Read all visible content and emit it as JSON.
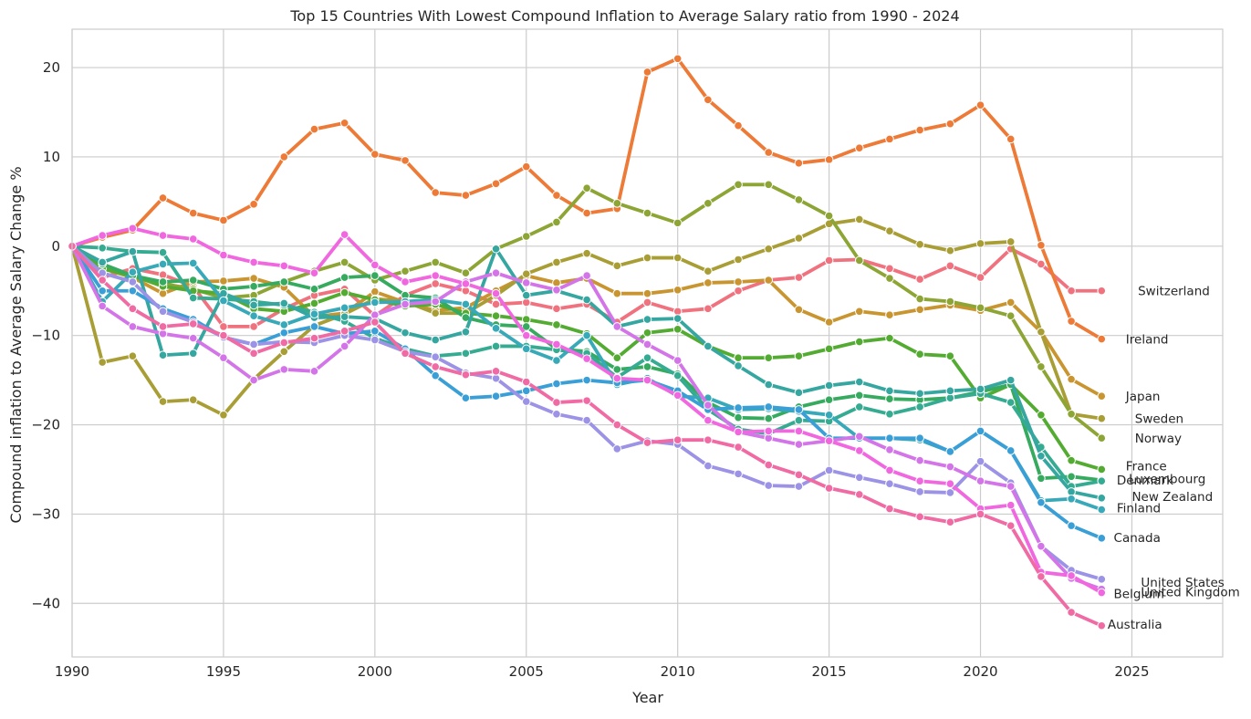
{
  "chart_data": {
    "type": "line",
    "title": "Top 15 Countries With Lowest Compound Inflation to Average Salary ratio from 1990 - 2024",
    "xlabel": "Year",
    "ylabel": "Compound inflation to Average Salary Change %",
    "xlim": [
      1990,
      2028
    ],
    "ylim": [
      -46,
      24.3
    ],
    "xticks": [
      1990,
      1995,
      2000,
      2005,
      2010,
      2015,
      2020,
      2025
    ],
    "yticks": [
      -40,
      -30,
      -20,
      -10,
      0,
      10,
      20
    ],
    "ytick_labels": [
      "−40",
      "−30",
      "−20",
      "−10",
      "0",
      "10",
      "20"
    ],
    "grid": true,
    "markers": true,
    "x": [
      1990,
      1991,
      1992,
      1993,
      1994,
      1995,
      1996,
      1997,
      1998,
      1999,
      2000,
      2001,
      2002,
      2003,
      2004,
      2005,
      2006,
      2007,
      2008,
      2009,
      2010,
      2011,
      2012,
      2013,
      2014,
      2015,
      2016,
      2017,
      2018,
      2019,
      2020,
      2021,
      2022,
      2023,
      2024
    ],
    "series": [
      {
        "name": "Switzerland",
        "color": "#f0727f",
        "values": [
          0,
          -3.5,
          -2.5,
          -3.2,
          -4.5,
          -9.0,
          -9.0,
          -7.0,
          -5.5,
          -4.8,
          -7.8,
          -5.5,
          -4.2,
          -5.0,
          -6.5,
          -6.3,
          -7.0,
          -6.5,
          -8.5,
          -6.3,
          -7.3,
          -7.0,
          -5.0,
          -3.8,
          -3.5,
          -1.6,
          -1.5,
          -2.5,
          -3.7,
          -2.2,
          -3.5,
          -0.3,
          -2.0,
          -5.0,
          -5.0
        ]
      },
      {
        "name": "Ireland",
        "color": "#ed7a36",
        "values": [
          0,
          1.0,
          1.8,
          5.4,
          3.7,
          2.9,
          4.7,
          10.0,
          13.1,
          13.8,
          10.3,
          9.6,
          6.0,
          5.7,
          7.0,
          8.9,
          5.7,
          3.7,
          4.2,
          19.5,
          21.0,
          16.4,
          13.5,
          10.5,
          9.3,
          9.7,
          11.0,
          12.0,
          13.0,
          13.7,
          15.8,
          12.0,
          0.1,
          -8.4,
          -10.4
        ]
      },
      {
        "name": "Japan",
        "color": "#c99530",
        "values": [
          0,
          -2.0,
          -3.5,
          -5.3,
          -4.0,
          -3.9,
          -3.6,
          -4.6,
          -7.9,
          -7.5,
          -5.1,
          -6.3,
          -7.2,
          -6.9,
          -5.0,
          -3.3,
          -4.1,
          -3.6,
          -5.3,
          -5.3,
          -4.9,
          -4.1,
          -4.0,
          -3.8,
          -7.1,
          -8.5,
          -7.3,
          -7.7,
          -7.1,
          -6.6,
          -7.2,
          -6.3,
          -9.6,
          -14.9,
          -16.8
        ]
      },
      {
        "name": "Sweden",
        "color": "#a89e35",
        "values": [
          0,
          -13.0,
          -12.3,
          -17.4,
          -17.2,
          -18.9,
          -14.9,
          -11.8,
          -8.9,
          -7.6,
          -5.9,
          -6.2,
          -7.5,
          -7.5,
          -5.5,
          -3.1,
          -1.8,
          -0.8,
          -2.2,
          -1.3,
          -1.3,
          -2.8,
          -1.5,
          -0.3,
          0.9,
          2.5,
          3.0,
          1.7,
          0.2,
          -0.5,
          0.3,
          0.5,
          -9.6,
          -18.8,
          -19.3
        ]
      },
      {
        "name": "Norway",
        "color": "#8da535",
        "values": [
          0,
          -2.5,
          -3.5,
          -4.2,
          -4.8,
          -5.8,
          -5.5,
          -4.0,
          -2.8,
          -1.8,
          -3.8,
          -2.8,
          -1.8,
          -3.0,
          -0.3,
          1.1,
          2.7,
          6.5,
          4.8,
          3.7,
          2.6,
          4.8,
          6.9,
          6.9,
          5.2,
          3.4,
          -1.6,
          -3.6,
          -5.9,
          -6.2,
          -6.9,
          -7.8,
          -13.5,
          -18.8,
          -21.5
        ]
      },
      {
        "name": "France",
        "color": "#53ab32",
        "values": [
          0,
          -2.5,
          -3.3,
          -4.5,
          -5.0,
          -5.3,
          -7.0,
          -7.3,
          -6.4,
          -5.2,
          -6.0,
          -6.7,
          -6.5,
          -7.5,
          -7.8,
          -8.2,
          -8.8,
          -9.8,
          -12.5,
          -9.7,
          -9.3,
          -11.2,
          -12.5,
          -12.5,
          -12.3,
          -11.5,
          -10.7,
          -10.3,
          -12.1,
          -12.3,
          -17.0,
          -15.5,
          -18.9,
          -24.0,
          -25.0
        ]
      },
      {
        "name": "Luxembourg",
        "color": "#36aa5f",
        "values": [
          0,
          -2.0,
          -3.3,
          -4.0,
          -3.8,
          -4.8,
          -4.5,
          -4.0,
          -4.8,
          -3.5,
          -3.3,
          -5.5,
          -5.8,
          -8.0,
          -8.8,
          -9.0,
          -11.5,
          -11.8,
          -13.8,
          -13.5,
          -14.3,
          -17.5,
          -19.2,
          -19.3,
          -18.0,
          -17.2,
          -16.7,
          -17.1,
          -17.2,
          -17.0,
          -16.3,
          -15.5,
          -26.0,
          -25.8,
          -26.2
        ]
      },
      {
        "name": "Denmark",
        "color": "#35ab92",
        "values": [
          0,
          -0.2,
          -0.6,
          -0.7,
          -5.8,
          -5.9,
          -6.2,
          -6.6,
          -7.4,
          -8.4,
          -10.3,
          -11.5,
          -12.3,
          -12.0,
          -11.2,
          -11.2,
          -11.6,
          -12.0,
          -14.7,
          -12.5,
          -14.5,
          -18.3,
          -20.5,
          -21.0,
          -19.5,
          -19.6,
          -18.0,
          -18.8,
          -18.0,
          -17.0,
          -16.5,
          -17.5,
          -22.5,
          -26.9,
          -26.3
        ]
      },
      {
        "name": "New Zealand",
        "color": "#36a7a0",
        "values": [
          0,
          -1.8,
          -0.6,
          -12.2,
          -12.0,
          -5.3,
          -6.6,
          -6.4,
          -8.0,
          -7.9,
          -8.1,
          -9.7,
          -10.5,
          -9.6,
          -0.3,
          -5.5,
          -5.0,
          -6.0,
          -9.0,
          -8.2,
          -8.1,
          -11.2,
          -13.4,
          -15.5,
          -16.4,
          -15.6,
          -15.2,
          -16.2,
          -16.5,
          -16.2,
          -16.0,
          -15.0,
          -23.5,
          -27.5,
          -28.2
        ]
      },
      {
        "name": "Finland",
        "color": "#38a9b8",
        "values": [
          0,
          -6.2,
          -2.9,
          -2.0,
          -1.9,
          -6.1,
          -7.8,
          -8.8,
          -7.6,
          -6.9,
          -6.3,
          -6.2,
          -6.0,
          -6.5,
          -9.2,
          -11.5,
          -12.8,
          -10.0,
          -15.5,
          -14.8,
          -16.8,
          -17.0,
          -18.3,
          -18.2,
          -18.5,
          -18.9,
          -21.5,
          -21.5,
          -21.7,
          -23.0,
          -20.7,
          -22.9,
          -28.5,
          -28.3,
          -29.5
        ]
      },
      {
        "name": "Canada",
        "color": "#399fd6",
        "values": [
          0,
          -5.0,
          -5.0,
          -7.0,
          -8.2,
          -10.2,
          -11.0,
          -9.7,
          -9.0,
          -9.8,
          -9.5,
          -11.5,
          -14.5,
          -17.0,
          -16.8,
          -16.2,
          -15.4,
          -15.0,
          -15.3,
          -15.0,
          -16.2,
          -18.3,
          -18.1,
          -18.0,
          -18.3,
          -21.5,
          -21.5,
          -21.5,
          -21.5,
          -23.0,
          -20.7,
          -22.9,
          -28.7,
          -31.3,
          -32.7
        ]
      },
      {
        "name": "United States",
        "color": "#9c92e6",
        "values": [
          0,
          -3.0,
          -4.0,
          -7.3,
          -8.5,
          -10.2,
          -11.0,
          -10.7,
          -10.8,
          -10.0,
          -10.5,
          -11.8,
          -12.4,
          -14.2,
          -14.8,
          -17.4,
          -18.8,
          -19.5,
          -22.7,
          -21.8,
          -22.2,
          -24.6,
          -25.5,
          -26.8,
          -26.9,
          -25.1,
          -25.9,
          -26.6,
          -27.5,
          -27.6,
          -24.1,
          -26.5,
          -33.6,
          -36.3,
          -37.3
        ]
      },
      {
        "name": "United Kingdom",
        "color": "#d375e8",
        "values": [
          0,
          -6.7,
          -9.0,
          -9.8,
          -10.3,
          -12.5,
          -15.0,
          -13.8,
          -14.0,
          -11.2,
          -7.7,
          -6.5,
          -6.2,
          -4.0,
          -3.0,
          -4.1,
          -4.9,
          -3.3,
          -9.0,
          -11.0,
          -12.8,
          -17.8,
          -20.8,
          -21.5,
          -22.2,
          -21.8,
          -21.3,
          -22.8,
          -24.0,
          -24.7,
          -26.3,
          -26.9,
          -33.6,
          -37.2,
          -38.4
        ]
      },
      {
        "name": "Belgium",
        "color": "#f067e0",
        "values": [
          0,
          1.2,
          2.0,
          1.2,
          0.8,
          -1.0,
          -1.8,
          -2.2,
          -3.0,
          1.3,
          -2.1,
          -4.0,
          -3.3,
          -4.2,
          -5.3,
          -10.0,
          -11.0,
          -12.6,
          -14.8,
          -15.0,
          -16.7,
          -19.5,
          -20.8,
          -20.7,
          -20.7,
          -21.8,
          -22.9,
          -25.1,
          -26.3,
          -26.6,
          -29.4,
          -29.0,
          -36.5,
          -36.9,
          -38.8
        ]
      },
      {
        "name": "Australia",
        "color": "#f06aa4",
        "values": [
          0,
          -3.8,
          -7.0,
          -9.0,
          -8.7,
          -10.0,
          -12.0,
          -10.8,
          -10.3,
          -9.5,
          -8.5,
          -12.0,
          -13.5,
          -14.4,
          -14.0,
          -15.2,
          -17.5,
          -17.3,
          -20.0,
          -22.0,
          -21.7,
          -21.7,
          -22.5,
          -24.5,
          -25.6,
          -27.1,
          -27.8,
          -29.4,
          -30.3,
          -30.9,
          -30.0,
          -31.3,
          -37.0,
          -41.0,
          -42.5
        ]
      }
    ],
    "end_labels": [
      {
        "text": "Switzerland",
        "x": 2025.2,
        "y": -5.0
      },
      {
        "text": "Ireland",
        "x": 2024.8,
        "y": -10.4
      },
      {
        "text": "Japan",
        "x": 2024.8,
        "y": -16.8
      },
      {
        "text": "Sweden",
        "x": 2025.1,
        "y": -19.3
      },
      {
        "text": "Norway",
        "x": 2025.1,
        "y": -21.5
      },
      {
        "text": "France",
        "x": 2024.8,
        "y": -24.6
      },
      {
        "text": "Luxembourg",
        "x": 2024.9,
        "y": -26.0
      },
      {
        "text": "Denmark",
        "x": 2024.5,
        "y": -26.2
      },
      {
        "text": "New Zealand",
        "x": 2025.0,
        "y": -28.0
      },
      {
        "text": "Finland",
        "x": 2024.5,
        "y": -29.3
      },
      {
        "text": "Canada",
        "x": 2024.4,
        "y": -32.6
      },
      {
        "text": "United States",
        "x": 2025.3,
        "y": -37.6
      },
      {
        "text": "United Kingdom",
        "x": 2025.3,
        "y": -38.7
      },
      {
        "text": "Belgium",
        "x": 2024.4,
        "y": -38.9
      },
      {
        "text": "Australia",
        "x": 2024.2,
        "y": -42.3
      }
    ]
  }
}
